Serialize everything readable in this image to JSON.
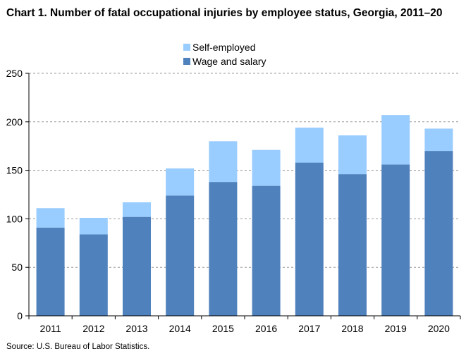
{
  "title": "Chart 1. Number of fatal occupational injuries by employee status, Georgia, 2011–20",
  "source": "Source: U.S. Bureau of Labor Statistics.",
  "chart_data": {
    "type": "bar",
    "stacked": true,
    "title": "Chart 1. Number of fatal occupational injuries by employee status, Georgia, 2011–20",
    "xlabel": "",
    "ylabel": "",
    "ylim": [
      0,
      250
    ],
    "yticks": [
      0,
      50,
      100,
      150,
      200,
      250
    ],
    "grid": "horizontal dashed",
    "legend_position": "top-center",
    "categories": [
      "2011",
      "2012",
      "2013",
      "2014",
      "2015",
      "2016",
      "2017",
      "2018",
      "2019",
      "2020"
    ],
    "series": [
      {
        "name": "Wage and salary",
        "color": "#4F81BD",
        "values": [
          91,
          84,
          102,
          124,
          138,
          134,
          158,
          146,
          156,
          170
        ]
      },
      {
        "name": "Self-employed",
        "color": "#99CCFF",
        "values": [
          20,
          17,
          15,
          28,
          42,
          37,
          36,
          40,
          51,
          23
        ]
      }
    ],
    "legend_order": [
      "Self-employed",
      "Wage and salary"
    ]
  }
}
